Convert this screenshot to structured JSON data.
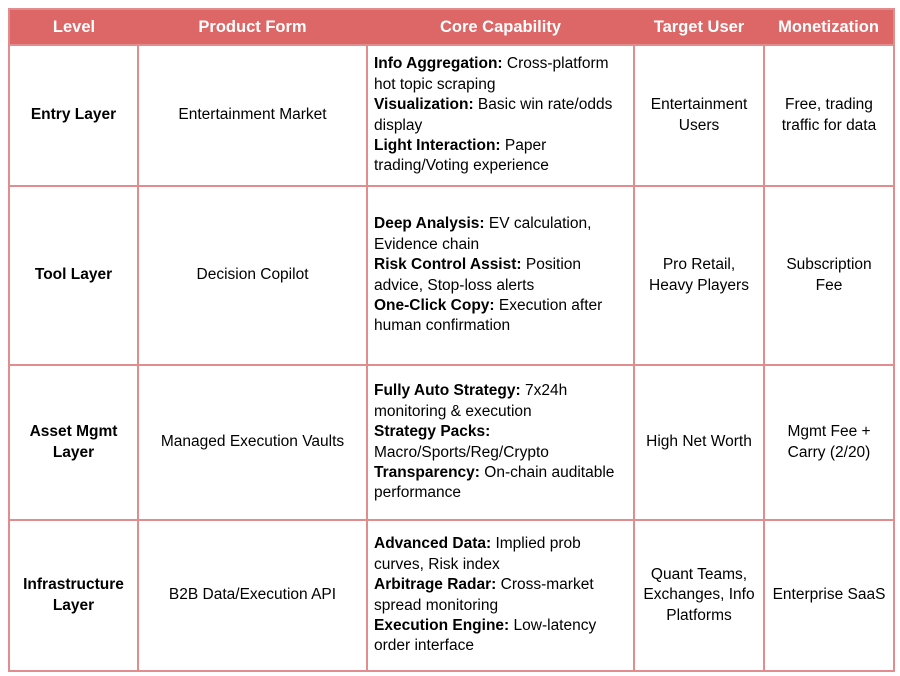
{
  "colors": {
    "header_bg": "#dd6666",
    "border": "#e28d8d",
    "header_text": "#ffffff",
    "body_text": "#000000",
    "page_bg": "#ffffff"
  },
  "table": {
    "headers": [
      "Level",
      "Product Form",
      "Core Capability",
      "Target User",
      "Monetization"
    ],
    "rows": [
      {
        "level": "Entry Layer",
        "product_form": "Entertainment Market",
        "core_capability": [
          {
            "label": "Info Aggregation:",
            "text": "Cross-platform hot topic scraping"
          },
          {
            "label": "Visualization:",
            "text": "Basic win rate/odds display"
          },
          {
            "label": "Light Interaction:",
            "text": "Paper trading/Voting experience"
          }
        ],
        "target_user": "Entertainment Users",
        "monetization": "Free, trading traffic for data"
      },
      {
        "level": "Tool Layer",
        "product_form": "Decision Copilot",
        "core_capability": [
          {
            "label": "Deep Analysis:",
            "text": "EV calculation, Evidence chain"
          },
          {
            "label": "Risk Control Assist:",
            "text": "Position advice, Stop-loss alerts"
          },
          {
            "label": "One-Click Copy:",
            "text": "Execution after human confirmation"
          }
        ],
        "target_user": "Pro Retail, Heavy Players",
        "monetization": "Subscription Fee"
      },
      {
        "level": "Asset Mgmt Layer",
        "product_form": "Managed Execution Vaults",
        "core_capability": [
          {
            "label": "Fully Auto Strategy:",
            "text": "7x24h monitoring & execution"
          },
          {
            "label": "Strategy Packs:",
            "text": "Macro/Sports/Reg/Crypto"
          },
          {
            "label": "Transparency:",
            "text": "On-chain auditable performance"
          }
        ],
        "target_user": "High Net Worth",
        "monetization": "Mgmt Fee + Carry (2/20)"
      },
      {
        "level": "Infrastructure Layer",
        "product_form": "B2B Data/Execution API",
        "core_capability": [
          {
            "label": "Advanced Data:",
            "text": "Implied prob curves, Risk index"
          },
          {
            "label": "Arbitrage Radar:",
            "text": "Cross-market spread monitoring"
          },
          {
            "label": "Execution Engine:",
            "text": "Low-latency order interface"
          }
        ],
        "target_user": "Quant Teams, Exchanges, Info Platforms",
        "monetization": "Enterprise SaaS"
      }
    ]
  }
}
